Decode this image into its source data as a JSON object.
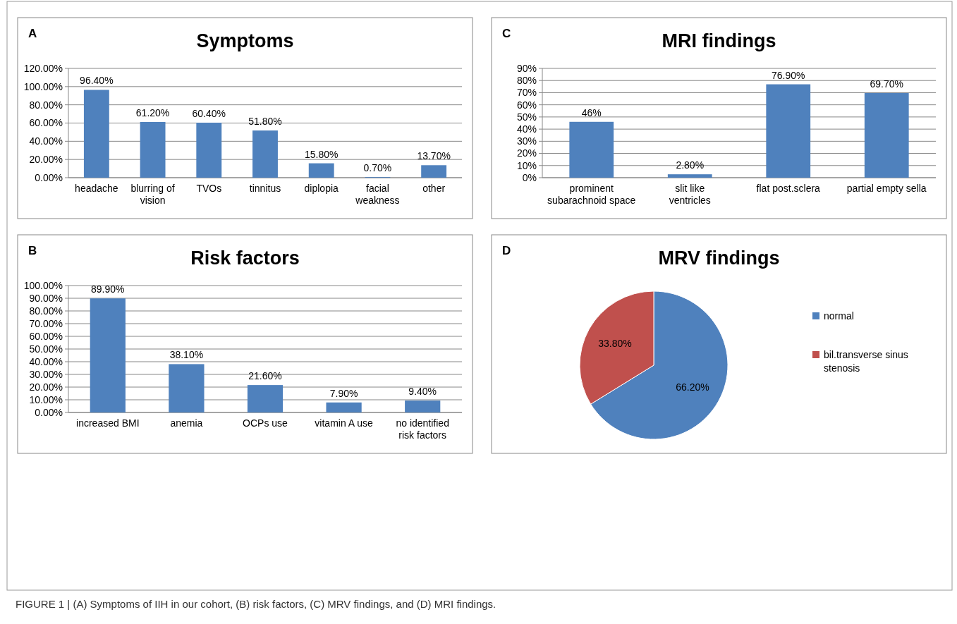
{
  "chart_data": [
    {
      "type": "bar",
      "title": "Symptoms",
      "annotations": [
        "A",
        "FIGURE 1 | (A) Symptoms of IIH in our cohort, (B) risk factors, (C) MRV findings, and (D) MRI findings."
      ],
      "categories": [
        "headache",
        "blurring of vision",
        "TVOs",
        "tinnitus",
        "diplopia",
        "facial weakness",
        "other"
      ],
      "values": [
        96.4,
        61.2,
        60.4,
        51.8,
        15.8,
        0.7,
        13.7
      ],
      "value_labels": [
        "96.40%",
        "61.20%",
        "60.40%",
        "51.80%",
        "15.80%",
        "0.70%",
        "13.70%"
      ],
      "color": "#4f81bd",
      "ylim": [
        0,
        120
      ],
      "yticks": [
        {
          "value": 0,
          "label": "0.00%"
        },
        {
          "value": 20,
          "label": "20.00%"
        },
        {
          "value": 40,
          "label": "40.00%"
        },
        {
          "value": 60,
          "label": "60.00%"
        },
        {
          "value": 80,
          "label": "80.00%"
        },
        {
          "value": 100,
          "label": "100.00%"
        },
        {
          "value": 120,
          "label": "120.00%"
        }
      ],
      "grid": "y"
    },
    {
      "type": "bar",
      "title": "MRI findings",
      "annotations": [
        "C"
      ],
      "categories": [
        "prominent subarachnoid space",
        "slit like ventricles",
        "flat post.sclera",
        "partial empty sella"
      ],
      "values": [
        46,
        2.8,
        76.9,
        69.7
      ],
      "value_labels": [
        "46%",
        "2.80%",
        "76.90%",
        "69.70%"
      ],
      "color": "#4f81bd",
      "ylim": [
        0,
        90
      ],
      "yticks": [
        {
          "value": 0,
          "label": "0%"
        },
        {
          "value": 10,
          "label": "10%"
        },
        {
          "value": 20,
          "label": "20%"
        },
        {
          "value": 30,
          "label": "30%"
        },
        {
          "value": 40,
          "label": "40%"
        },
        {
          "value": 50,
          "label": "50%"
        },
        {
          "value": 60,
          "label": "60%"
        },
        {
          "value": 70,
          "label": "70%"
        },
        {
          "value": 80,
          "label": "80%"
        },
        {
          "value": 90,
          "label": "90%"
        }
      ],
      "grid": "y"
    },
    {
      "type": "bar",
      "title": "Risk factors",
      "annotations": [
        "B"
      ],
      "categories": [
        "increased BMI",
        "anemia",
        "OCPs use",
        "vitamin A use",
        "no identified risk factors"
      ],
      "values": [
        89.9,
        38.1,
        21.6,
        7.9,
        9.4
      ],
      "value_labels": [
        "89.90%",
        "38.10%",
        "21.60%",
        "7.90%",
        "9.40%"
      ],
      "color": "#4f81bd",
      "ylim": [
        0,
        100
      ],
      "yticks": [
        {
          "value": 0,
          "label": "0.00%"
        },
        {
          "value": 10,
          "label": "10.00%"
        },
        {
          "value": 20,
          "label": "20.00%"
        },
        {
          "value": 30,
          "label": "30.00%"
        },
        {
          "value": 40,
          "label": "40.00%"
        },
        {
          "value": 50,
          "label": "50.00%"
        },
        {
          "value": 60,
          "label": "60.00%"
        },
        {
          "value": 70,
          "label": "70.00%"
        },
        {
          "value": 80,
          "label": "80.00%"
        },
        {
          "value": 90,
          "label": "90.00%"
        },
        {
          "value": 100,
          "label": "100.00%"
        }
      ],
      "grid": "y"
    },
    {
      "type": "pie",
      "title": "MRV findings",
      "annotations": [
        "D"
      ],
      "categories": [
        "normal",
        "bil.transverse sinus stenosis"
      ],
      "values": [
        66.2,
        33.8
      ],
      "value_labels": [
        "66.20%",
        "33.80%"
      ],
      "colors": [
        "#4f81bd",
        "#c0504d"
      ],
      "legend": "right"
    }
  ]
}
